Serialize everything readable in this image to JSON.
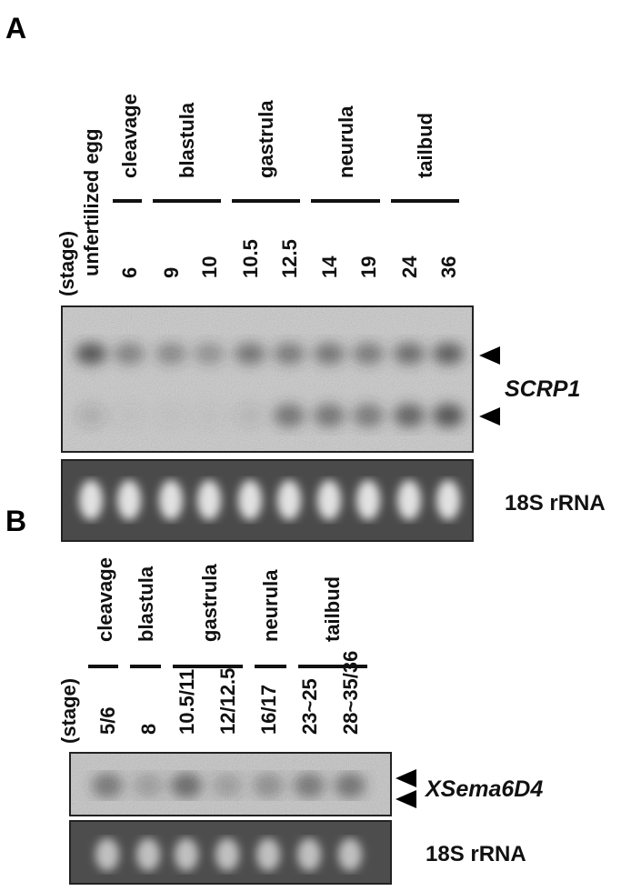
{
  "panel_a": {
    "letter": "A",
    "stage_label": "(stage)",
    "first_lane_label": "unfertilized egg",
    "groups": [
      "cleavage",
      "blastula",
      "gastrula",
      "neurula",
      "tailbud"
    ],
    "lanes": [
      "6",
      "9",
      "10",
      "10.5",
      "12.5",
      "14",
      "19",
      "24",
      "36"
    ],
    "gene": "SCRP1",
    "loading_control": "18S rRNA"
  },
  "panel_b": {
    "letter": "B",
    "stage_label": "(stage)",
    "groups": [
      "cleavage",
      "blastula",
      "gastrula",
      "neurula",
      "tailbud"
    ],
    "lanes": [
      "5/6",
      "8",
      "10.5/11",
      "12/12.5",
      "16/17",
      "23~25",
      "28~35/36"
    ],
    "gene": "XSema6D4",
    "loading_control": "18S rRNA"
  }
}
